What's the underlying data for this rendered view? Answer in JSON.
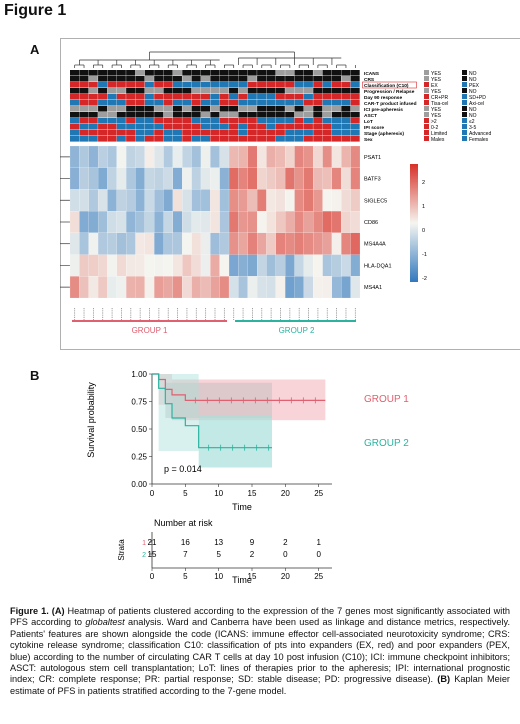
{
  "figure": {
    "title": "Figure 1",
    "panel_a_label": "A",
    "panel_b_label": "B"
  },
  "heatmap": {
    "annotation_rows": [
      "ICANS",
      "CRS",
      "Classification (C10)",
      "Progression / Relapse",
      "Day 90 response",
      "CAR-T product infused",
      "ICI pre-apheresis",
      "ASCT",
      "LoT",
      "IPI score",
      "Stage (apheresis)",
      "Sex"
    ],
    "legend_left": [
      {
        "label": "YES",
        "color": "#9e9e9e"
      },
      {
        "label": "YES",
        "color": "#9e9e9e"
      },
      {
        "label": "EX",
        "color": "#d62728"
      },
      {
        "label": "YES",
        "color": "#9e9e9e"
      },
      {
        "label": "CR+PR",
        "color": "#d62728"
      },
      {
        "label": "Tisa-cel",
        "color": "#d62728"
      },
      {
        "label": "YES",
        "color": "#9e9e9e"
      },
      {
        "label": "YES",
        "color": "#9e9e9e"
      },
      {
        "label": ">2",
        "color": "#d62728"
      },
      {
        "label": "0-2",
        "color": "#d62728"
      },
      {
        "label": "Limited",
        "color": "#d62728"
      },
      {
        "label": "Males",
        "color": "#d62728"
      }
    ],
    "legend_right": [
      {
        "label": "NO",
        "color": "#111111"
      },
      {
        "label": "NO",
        "color": "#111111"
      },
      {
        "label": "PEX",
        "color": "#1f77b4"
      },
      {
        "label": "NO",
        "color": "#111111"
      },
      {
        "label": "SD+PD",
        "color": "#1f77b4"
      },
      {
        "label": "Axi-cel",
        "color": "#1f77b4"
      },
      {
        "label": "NO",
        "color": "#111111"
      },
      {
        "label": "NO",
        "color": "#111111"
      },
      {
        "label": "≤2",
        "color": "#1f77b4"
      },
      {
        "label": "3-5",
        "color": "#1f77b4"
      },
      {
        "label": "Advanced",
        "color": "#1f77b4"
      },
      {
        "label": "Females",
        "color": "#1f77b4"
      }
    ],
    "genes": [
      "PSAT1",
      "BATF3",
      "SIGLEC5",
      "CD86",
      "MS4A4A",
      "HLA-DQA1",
      "MS4A1"
    ],
    "scale_ticks": [
      "2",
      "1",
      "0",
      "-1",
      "-2"
    ],
    "group1_label": "GROUP 1",
    "group2_label": "GROUP 2",
    "group1_color": "#e06070",
    "group2_color": "#2bb3a0"
  },
  "km": {
    "y_label": "Survival probability",
    "y_ticks": [
      "0.00",
      "0.25",
      "0.50",
      "0.75",
      "1.00"
    ],
    "x_ticks": [
      "0",
      "5",
      "10",
      "15",
      "20",
      "25"
    ],
    "x_label": "Time",
    "p_value": "p = 0.014",
    "group1_label": "GROUP 1",
    "group2_label": "GROUP 2",
    "risk_title": "Number at risk",
    "strata_label": "Strata",
    "risk_rows": [
      {
        "stratum": "1",
        "values": [
          "21",
          "16",
          "13",
          "9",
          "2",
          "1"
        ],
        "color": "#e06070"
      },
      {
        "stratum": "2",
        "values": [
          "15",
          "7",
          "5",
          "2",
          "0",
          "0"
        ],
        "color": "#2bb3a0"
      }
    ],
    "risk_x_ticks": [
      "0",
      "5",
      "10",
      "15",
      "20",
      "25"
    ],
    "risk_x_label": "Time"
  },
  "chart_data": {
    "type": "line",
    "title": "",
    "xlabel": "Time",
    "ylabel": "Survival probability",
    "xlim": [
      0,
      27
    ],
    "ylim": [
      0,
      1
    ],
    "series": [
      {
        "name": "GROUP 1",
        "color": "#e06070",
        "x": [
          0,
          1,
          2,
          3,
          4,
          5,
          26
        ],
        "y": [
          1.0,
          0.95,
          0.86,
          0.81,
          0.81,
          0.76,
          0.76
        ]
      },
      {
        "name": "GROUP 2",
        "color": "#2bb3a0",
        "x": [
          0,
          1,
          2,
          3,
          5,
          7,
          18
        ],
        "y": [
          1.0,
          0.87,
          0.73,
          0.6,
          0.53,
          0.33,
          0.33
        ]
      }
    ],
    "annotations": [
      "p = 0.014"
    ]
  },
  "caption": {
    "lead": "Figure 1. ",
    "a_marker": "(A)",
    "part1": " Heatmap of patients clustered according to the expression of the 7 genes most significantly associated with PFS according to ",
    "globaltest": "globaltest",
    "part2": " analysis. Ward and Canberra have been used as linkage and distance metrics, respectively. Patients' features are shown alongside the code (ICANS: immune effector cell-associated neurotoxicity syndrome; CRS: cytokine release syndrome; classification C10: classification of pts into expanders (EX, red) and poor expanders (PEX, blue) according to the number of circulating CAR T cells at day 10 post infusion (C10); ICI: immune checkpoint inhibitors; ASCT: autologous stem cell transplantation; LoT: lines of therapies prior to the apheresis; IPI: international prognostic index; CR: complete response; PR: partial response; SD: stable disease; PD: progressive disease). ",
    "b_marker": "(B)",
    "part3": " Kaplan Meier estimate of PFS in patients stratified according to the 7-gene model."
  }
}
